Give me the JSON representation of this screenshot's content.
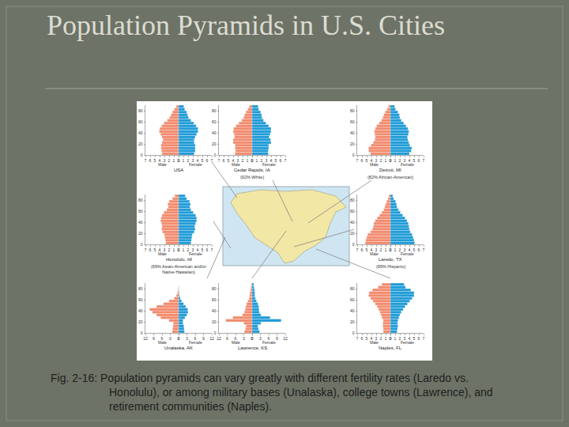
{
  "title": "Population Pyramids in U.S. Cities",
  "caption": [
    "Fig. 2-16: Population pyramids can vary greatly with different fertility rates (Laredo vs.",
    "Honolulu), or among military bases (Unalaska), college towns (Lawrence), and",
    "retirement communities (Naples)."
  ],
  "chart_data": [
    {
      "type": "bar",
      "orientation": "horizontal",
      "title": "USA",
      "y": [
        0,
        5,
        10,
        15,
        20,
        25,
        30,
        35,
        40,
        45,
        50,
        55,
        60,
        65,
        70,
        75,
        80,
        85
      ],
      "series": [
        {
          "name": "Male",
          "color": "#f28b6e",
          "values": [
            3.5,
            3.6,
            3.7,
            3.7,
            3.5,
            3.3,
            3.5,
            3.8,
            4.1,
            4.0,
            3.6,
            3.1,
            2.4,
            1.9,
            1.6,
            1.3,
            0.9,
            0.5
          ]
        },
        {
          "name": "Female",
          "color": "#1f9bd7",
          "values": [
            3.3,
            3.5,
            3.5,
            3.5,
            3.3,
            3.3,
            3.5,
            3.8,
            4.1,
            4.1,
            3.7,
            3.2,
            2.6,
            2.1,
            1.9,
            1.7,
            1.3,
            1.1
          ]
        }
      ],
      "xlim": [
        0,
        7
      ],
      "xticks": [
        0,
        1,
        2,
        3,
        4,
        5,
        6,
        7
      ],
      "ylim": [
        0,
        90
      ],
      "yticks": [
        0,
        20,
        40,
        60,
        80
      ]
    },
    {
      "type": "bar",
      "orientation": "horizontal",
      "title": "Cedar Rapids, IA",
      "subtitle": "(92% White)",
      "y": [
        0,
        5,
        10,
        15,
        20,
        25,
        30,
        35,
        40,
        45,
        50,
        55,
        60,
        65,
        70,
        75,
        80,
        85
      ],
      "series": [
        {
          "name": "Male",
          "color": "#f28b6e",
          "values": [
            3.6,
            3.5,
            3.6,
            3.6,
            4.0,
            4.0,
            3.7,
            3.8,
            4.0,
            3.9,
            3.4,
            2.8,
            2.2,
            1.8,
            1.6,
            1.3,
            0.9,
            0.6
          ]
        },
        {
          "name": "Female",
          "color": "#1f9bd7",
          "values": [
            3.4,
            3.4,
            3.5,
            3.5,
            4.0,
            3.9,
            3.6,
            3.8,
            4.0,
            4.0,
            3.5,
            2.9,
            2.4,
            2.1,
            2.0,
            1.8,
            1.4,
            1.3
          ]
        }
      ],
      "xlim": [
        0,
        7
      ],
      "xticks": [
        0,
        1,
        2,
        3,
        4,
        5,
        6,
        7
      ],
      "ylim": [
        0,
        90
      ],
      "yticks": [
        0,
        20,
        40,
        60,
        80
      ]
    },
    {
      "type": "bar",
      "orientation": "horizontal",
      "title": "Detroit, MI",
      "subtitle": "(82% African-American)",
      "y": [
        0,
        5,
        10,
        15,
        20,
        25,
        30,
        35,
        40,
        45,
        50,
        55,
        60,
        65,
        70,
        75,
        80,
        85
      ],
      "series": [
        {
          "name": "Male",
          "color": "#f28b6e",
          "values": [
            4.2,
            4.6,
            4.6,
            4.1,
            3.6,
            3.3,
            3.2,
            3.3,
            3.4,
            3.2,
            2.9,
            2.4,
            1.9,
            1.6,
            1.4,
            1.1,
            0.7,
            0.4
          ]
        },
        {
          "name": "Female",
          "color": "#1f9bd7",
          "values": [
            4.0,
            4.4,
            4.5,
            4.1,
            3.9,
            3.7,
            3.6,
            3.8,
            3.9,
            3.7,
            3.3,
            2.8,
            2.3,
            2.0,
            1.9,
            1.6,
            1.1,
            0.9
          ]
        }
      ],
      "xlim": [
        0,
        7
      ],
      "xticks": [
        0,
        1,
        2,
        3,
        4,
        5,
        6,
        7
      ],
      "ylim": [
        0,
        90
      ],
      "yticks": [
        0,
        20,
        40,
        60,
        80
      ]
    },
    {
      "type": "bar",
      "orientation": "horizontal",
      "title": "Honolulu, HI",
      "subtitle": [
        "(69% Asian-American and/or",
        "Native Hawaiian)"
      ],
      "y": [
        0,
        5,
        10,
        15,
        20,
        25,
        30,
        35,
        40,
        45,
        50,
        55,
        60,
        65,
        70,
        75,
        80,
        85
      ],
      "series": [
        {
          "name": "Male",
          "color": "#f28b6e",
          "values": [
            2.7,
            2.8,
            2.9,
            3.0,
            3.4,
            3.6,
            3.5,
            3.6,
            3.8,
            3.7,
            3.5,
            3.1,
            2.5,
            2.2,
            2.3,
            2.0,
            1.3,
            0.8
          ]
        },
        {
          "name": "Female",
          "color": "#1f9bd7",
          "values": [
            2.6,
            2.7,
            2.8,
            2.9,
            3.3,
            3.5,
            3.4,
            3.6,
            3.8,
            3.8,
            3.6,
            3.1,
            2.6,
            2.4,
            2.5,
            2.3,
            1.7,
            1.4
          ]
        }
      ],
      "xlim": [
        0,
        7
      ],
      "xticks": [
        0,
        1,
        2,
        3,
        4,
        5,
        6,
        7
      ],
      "ylim": [
        0,
        90
      ],
      "yticks": [
        0,
        20,
        40,
        60,
        80
      ]
    },
    {
      "type": "bar",
      "orientation": "horizontal",
      "title": "Laredo, TX",
      "subtitle": "(95% Hispanic)",
      "y": [
        0,
        5,
        10,
        15,
        20,
        25,
        30,
        35,
        40,
        45,
        50,
        55,
        60,
        65,
        70,
        75,
        80,
        85
      ],
      "series": [
        {
          "name": "Male",
          "color": "#f28b6e",
          "values": [
            5.3,
            5.2,
            5.0,
            4.8,
            4.2,
            3.8,
            3.6,
            3.5,
            3.2,
            2.8,
            2.3,
            1.8,
            1.4,
            1.2,
            1.0,
            0.8,
            0.5,
            0.3
          ]
        },
        {
          "name": "Female",
          "color": "#1f9bd7",
          "values": [
            5.1,
            5.0,
            4.8,
            4.6,
            4.2,
            4.0,
            3.9,
            3.8,
            3.5,
            3.1,
            2.6,
            2.1,
            1.7,
            1.4,
            1.3,
            1.1,
            0.7,
            0.5
          ]
        }
      ],
      "xlim": [
        0,
        7
      ],
      "xticks": [
        0,
        1,
        2,
        3,
        4,
        5,
        6,
        7
      ],
      "ylim": [
        0,
        90
      ],
      "yticks": [
        0,
        20,
        40,
        60,
        80
      ]
    },
    {
      "type": "bar",
      "orientation": "horizontal",
      "title": "Unalaska, AK",
      "y": [
        0,
        5,
        10,
        15,
        20,
        25,
        30,
        35,
        40,
        45,
        50,
        55,
        60,
        65,
        70,
        75,
        80,
        85
      ],
      "series": [
        {
          "name": "Male",
          "color": "#f28b6e",
          "values": [
            2.3,
            2.2,
            2.0,
            1.9,
            3.5,
            6.5,
            8.0,
            9.5,
            10.5,
            8.0,
            5.5,
            3.5,
            1.6,
            0.8,
            0.4,
            0.2,
            0.1,
            0.0
          ]
        },
        {
          "name": "Female",
          "color": "#1f9bd7",
          "values": [
            2.1,
            2.0,
            1.9,
            1.6,
            1.6,
            2.3,
            3.0,
            3.4,
            3.3,
            2.6,
            1.8,
            1.1,
            0.6,
            0.3,
            0.2,
            0.1,
            0.1,
            0.0
          ]
        }
      ],
      "xlim": [
        0,
        12
      ],
      "xticks": [
        0,
        3,
        6,
        9,
        12
      ],
      "ylim": [
        0,
        90
      ],
      "yticks": [
        0,
        20,
        40,
        60,
        80
      ]
    },
    {
      "type": "bar",
      "orientation": "horizontal",
      "title": "Lawrence, KS",
      "y": [
        0,
        5,
        10,
        15,
        20,
        25,
        30,
        35,
        40,
        45,
        50,
        55,
        60,
        65,
        70,
        75,
        80,
        85
      ],
      "series": [
        {
          "name": "Male",
          "color": "#f28b6e",
          "values": [
            2.8,
            2.4,
            2.2,
            3.0,
            9.5,
            7.0,
            3.5,
            2.8,
            2.5,
            2.3,
            2.0,
            1.5,
            1.1,
            0.9,
            0.8,
            0.6,
            0.4,
            0.3
          ]
        },
        {
          "name": "Female",
          "color": "#1f9bd7",
          "values": [
            2.7,
            2.3,
            2.1,
            3.2,
            10.5,
            6.5,
            3.2,
            2.6,
            2.5,
            2.4,
            2.1,
            1.6,
            1.2,
            1.0,
            1.0,
            0.9,
            0.7,
            0.6
          ]
        }
      ],
      "xlim": [
        0,
        12
      ],
      "xticks": [
        0,
        3,
        6,
        9,
        12
      ],
      "ylim": [
        0,
        90
      ],
      "yticks": [
        0,
        20,
        40,
        60,
        80
      ]
    },
    {
      "type": "bar",
      "orientation": "horizontal",
      "title": "Naples, FL",
      "y": [
        0,
        5,
        10,
        15,
        20,
        25,
        30,
        35,
        40,
        45,
        50,
        55,
        60,
        65,
        70,
        75,
        80,
        85
      ],
      "series": [
        {
          "name": "Male",
          "color": "#f28b6e",
          "values": [
            1.5,
            1.5,
            1.6,
            1.6,
            1.5,
            1.8,
            2.0,
            2.2,
            2.5,
            2.8,
            3.2,
            3.7,
            4.2,
            4.6,
            4.5,
            3.8,
            2.6,
            1.8
          ]
        },
        {
          "name": "Female",
          "color": "#1f9bd7",
          "values": [
            1.4,
            1.5,
            1.6,
            1.5,
            1.6,
            1.8,
            2.0,
            2.3,
            2.7,
            3.1,
            3.6,
            4.1,
            4.6,
            5.0,
            5.0,
            4.3,
            3.2,
            2.9
          ]
        }
      ],
      "xlim": [
        0,
        7
      ],
      "xticks": [
        0,
        1,
        2,
        3,
        4,
        5,
        6,
        7
      ],
      "ylim": [
        0,
        90
      ],
      "yticks": [
        0,
        20,
        40,
        60,
        80
      ]
    }
  ]
}
